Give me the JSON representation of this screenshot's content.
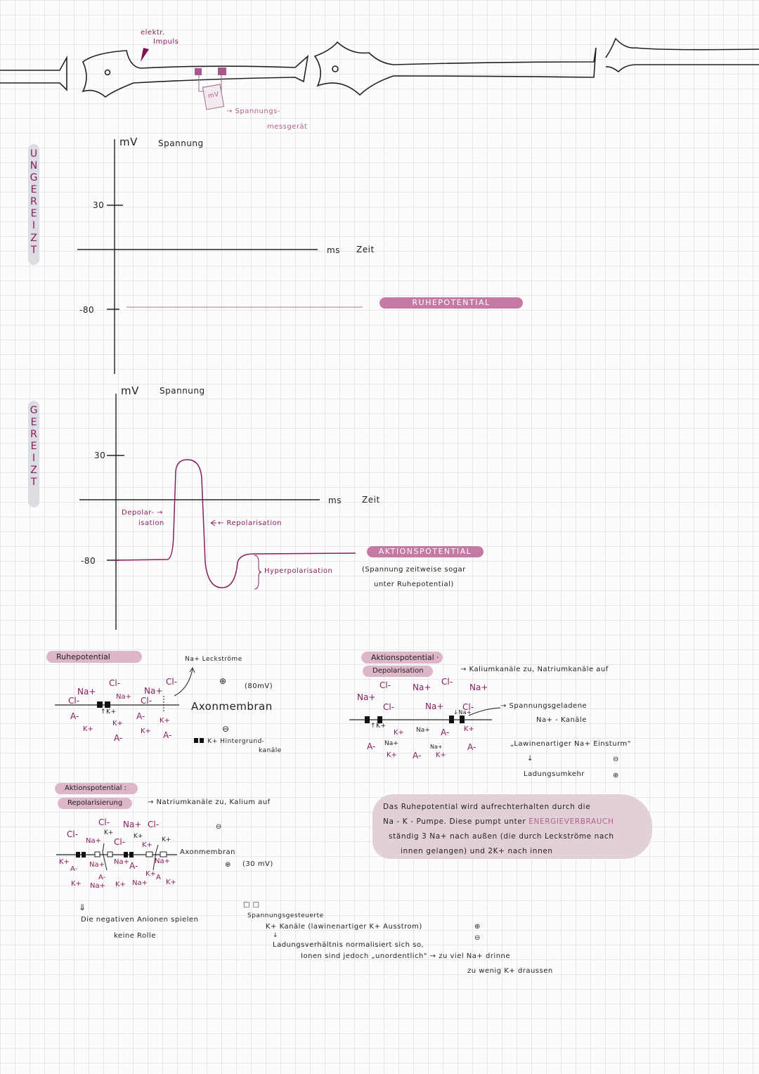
{
  "neuron": {
    "impulse_label_1": "elektr.",
    "impulse_label_2": "Impuls",
    "meter": "mV",
    "meter_label_1": "→ Spannungs-",
    "meter_label_2": "messgerät"
  },
  "side_labels": {
    "unstimulated": "UNGEREIZT",
    "stimulated": "GEREIZT"
  },
  "graph_resting": {
    "y_unit": "mV",
    "y_title": "Spannung",
    "x_unit": "ms",
    "x_title": "Zeit",
    "tick_high": "30",
    "tick_low": "-80",
    "badge": "RUHEPOTENTIAL"
  },
  "graph_action": {
    "y_unit": "mV",
    "y_title": "Spannung",
    "x_unit": "ms",
    "x_title": "Zeit",
    "tick_high": "30",
    "tick_low": "-80",
    "depol_1": "Depolar- →",
    "depol_2": "isation",
    "repol": "← Repolarisation",
    "hyperpol": "Hyperpolarisation",
    "badge": "AKTIONSPOTENTIAL",
    "note_1": "(Spannung zeitweise sogar",
    "note_2": "unter Ruhepotential)"
  },
  "resting_section": {
    "title": "Ruhepotential",
    "leak": "Na+ Leckströme",
    "plus": "⊕",
    "voltage": "(80mV)",
    "membrane": "Axonmembran",
    "minus": "⊖",
    "k_arrow": "↑K+",
    "legend_1": "K+ Hintergrund-",
    "legend_2": "kanäle",
    "ions_out": [
      "Na+",
      "Cl-",
      "Cl-",
      "Na+",
      "Na+",
      "Cl-",
      "Cl-"
    ],
    "ions_in": [
      "A-",
      "K+",
      "K+",
      "A-",
      "A-",
      "K+",
      "K+",
      "A-"
    ]
  },
  "depol_section": {
    "title": "Aktionspotential ·",
    "subtitle": "Depolarisation",
    "note": "→ Kaliumkanäle zu, Natriumkanäle auf",
    "ions_out": [
      "Cl-",
      "Na+",
      "Cl-",
      "Na+",
      "Na+",
      "Cl-",
      "Na+",
      "Cl-"
    ],
    "k_arrow": "↑K+",
    "na_arrow": "↓Na+",
    "ions_in": [
      "K+",
      "Na+",
      "A-",
      "K+",
      "A-",
      "Na+",
      "K+",
      "A-",
      "Na+",
      "K+",
      "A-"
    ],
    "channel_label_1": "→ Spannungsgeladene",
    "channel_label_2": "Na+ - Kanäle",
    "avalanche": "„Lawinenartiger Na+ Einsturm\"",
    "arrow": "↓",
    "reversal": "Ladungsumkehr",
    "minus": "⊖",
    "plus": "⊕"
  },
  "summary": {
    "line_1": "Das Ruhepotential wird aufrechterhalten durch die",
    "line_2a": "Na - K - Pumpe. Diese pumpt unter",
    "line_2b": "ENERGIEVERBRAUCH",
    "line_3": "ständig 3 Na+ nach außen (die durch Leckströme nach",
    "line_4": "innen gelangen) und 2K+ nach innen"
  },
  "repol_section": {
    "title": "Aktionspotential :",
    "subtitle": "Repolarisierung",
    "note": "→ Natriumkanäle zu, Kalium auf",
    "ions_out": [
      "Cl-",
      "Na+",
      "Cl-",
      "Cl-",
      "K+",
      "Na+",
      "Cl-",
      "K+",
      "K+",
      "K+"
    ],
    "membrane": "Axonmembran",
    "minus": "⊖",
    "plus": "⊕",
    "voltage": "(30 mV)",
    "ions_in": [
      "K+",
      "Na+",
      "Na+",
      "A-",
      "Na+",
      "A-",
      "K+",
      "A-",
      "A",
      "K+",
      "K+",
      "Na+",
      "K+",
      "Na+"
    ],
    "conclusion_arrow": "⇓",
    "conclusion_1": "Die negativen Anionen spielen",
    "conclusion_2": "keine Rolle",
    "legend_symbol": "□ □",
    "legend_1": "Spannungsgesteuerte",
    "legend_2": "K+ Kanäle (lawinenartiger K+ Ausstrom)",
    "legend_plus": "⊕",
    "legend_arrow": "↓",
    "legend_minus": "⊖",
    "legend_3": "Ladungsverhältnis normalisiert sich so,",
    "legend_4": "Ionen sind jedoch „unordentlich\" → zu viel Na+ drinne",
    "legend_5": "zu wenig K+ draussen"
  }
}
